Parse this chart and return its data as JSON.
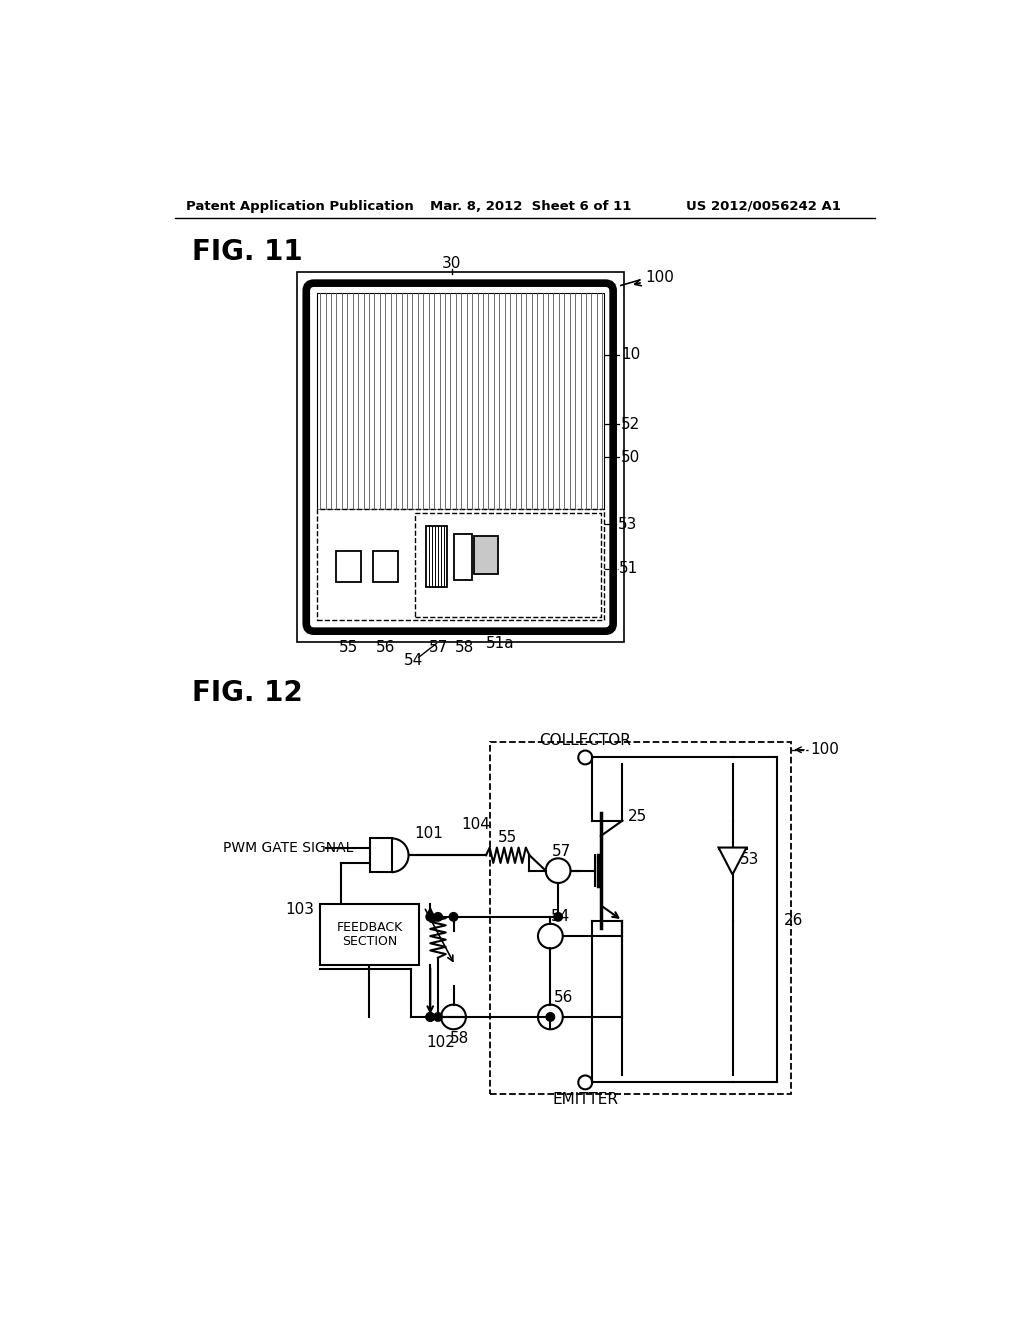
{
  "bg_color": "#ffffff",
  "header_left": "Patent Application Publication",
  "header_center": "Mar. 8, 2012  Sheet 6 of 11",
  "header_right": "US 2012/0056242 A1",
  "fig11_label": "FIG. 11",
  "fig12_label": "FIG. 12",
  "line_color": "#000000",
  "light_gray": "#c8c8c8",
  "stripe_color": "#888888"
}
